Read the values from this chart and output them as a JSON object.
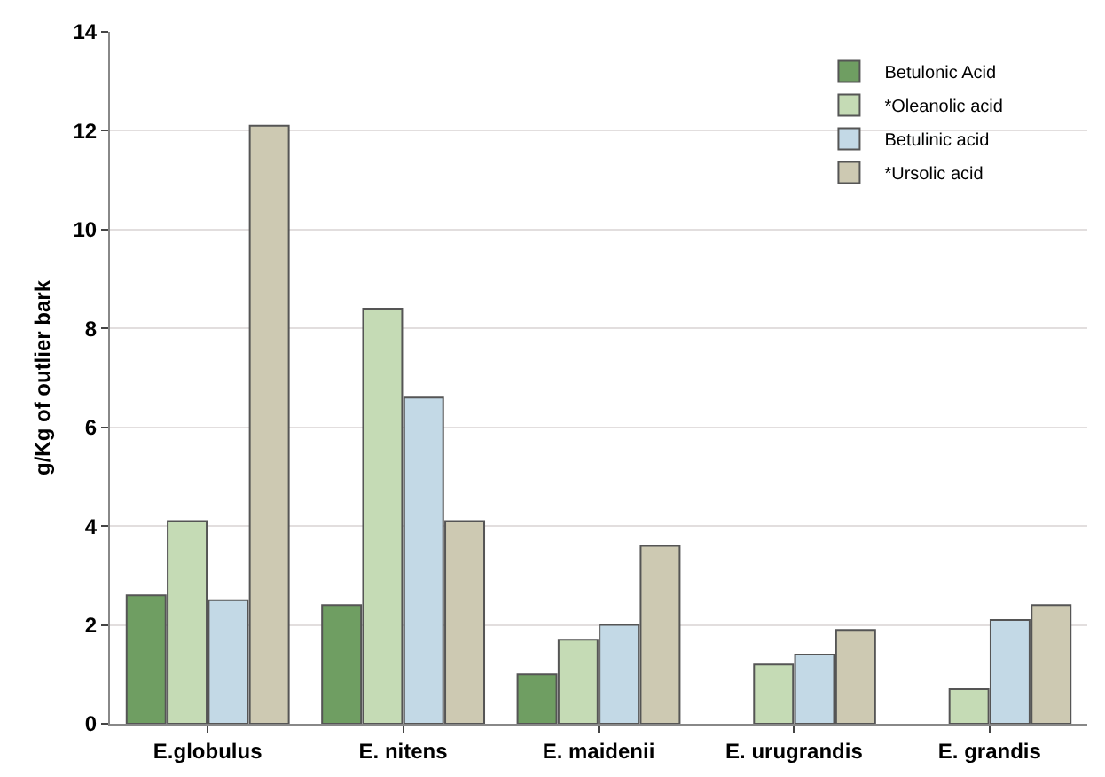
{
  "chart_data": {
    "type": "bar",
    "ylabel": "g/Kg of outlier bark",
    "categories": [
      "E.globulus",
      "E. nitens",
      "E. maidenii",
      "E. urugrandis",
      "E. grandis"
    ],
    "series": [
      {
        "name": "Betulonic Acid",
        "color": "#6f9e62",
        "values": [
          2.6,
          2.4,
          1.0,
          null,
          null
        ]
      },
      {
        "name": "*Oleanolic acid",
        "color": "#c5dbb5",
        "values": [
          4.1,
          8.4,
          1.7,
          1.2,
          0.7
        ]
      },
      {
        "name": "Betulinic acid",
        "color": "#c3d9e6",
        "values": [
          2.5,
          6.6,
          2.0,
          1.4,
          2.1
        ]
      },
      {
        "name": "*Ursolic acid",
        "color": "#cdc9b2",
        "values": [
          12.1,
          4.1,
          3.6,
          1.9,
          2.4
        ]
      }
    ],
    "ylim": [
      0,
      14
    ],
    "yticks": [
      0,
      2,
      4,
      6,
      8,
      10,
      12,
      14
    ],
    "grid": "y",
    "legend": "top right"
  }
}
